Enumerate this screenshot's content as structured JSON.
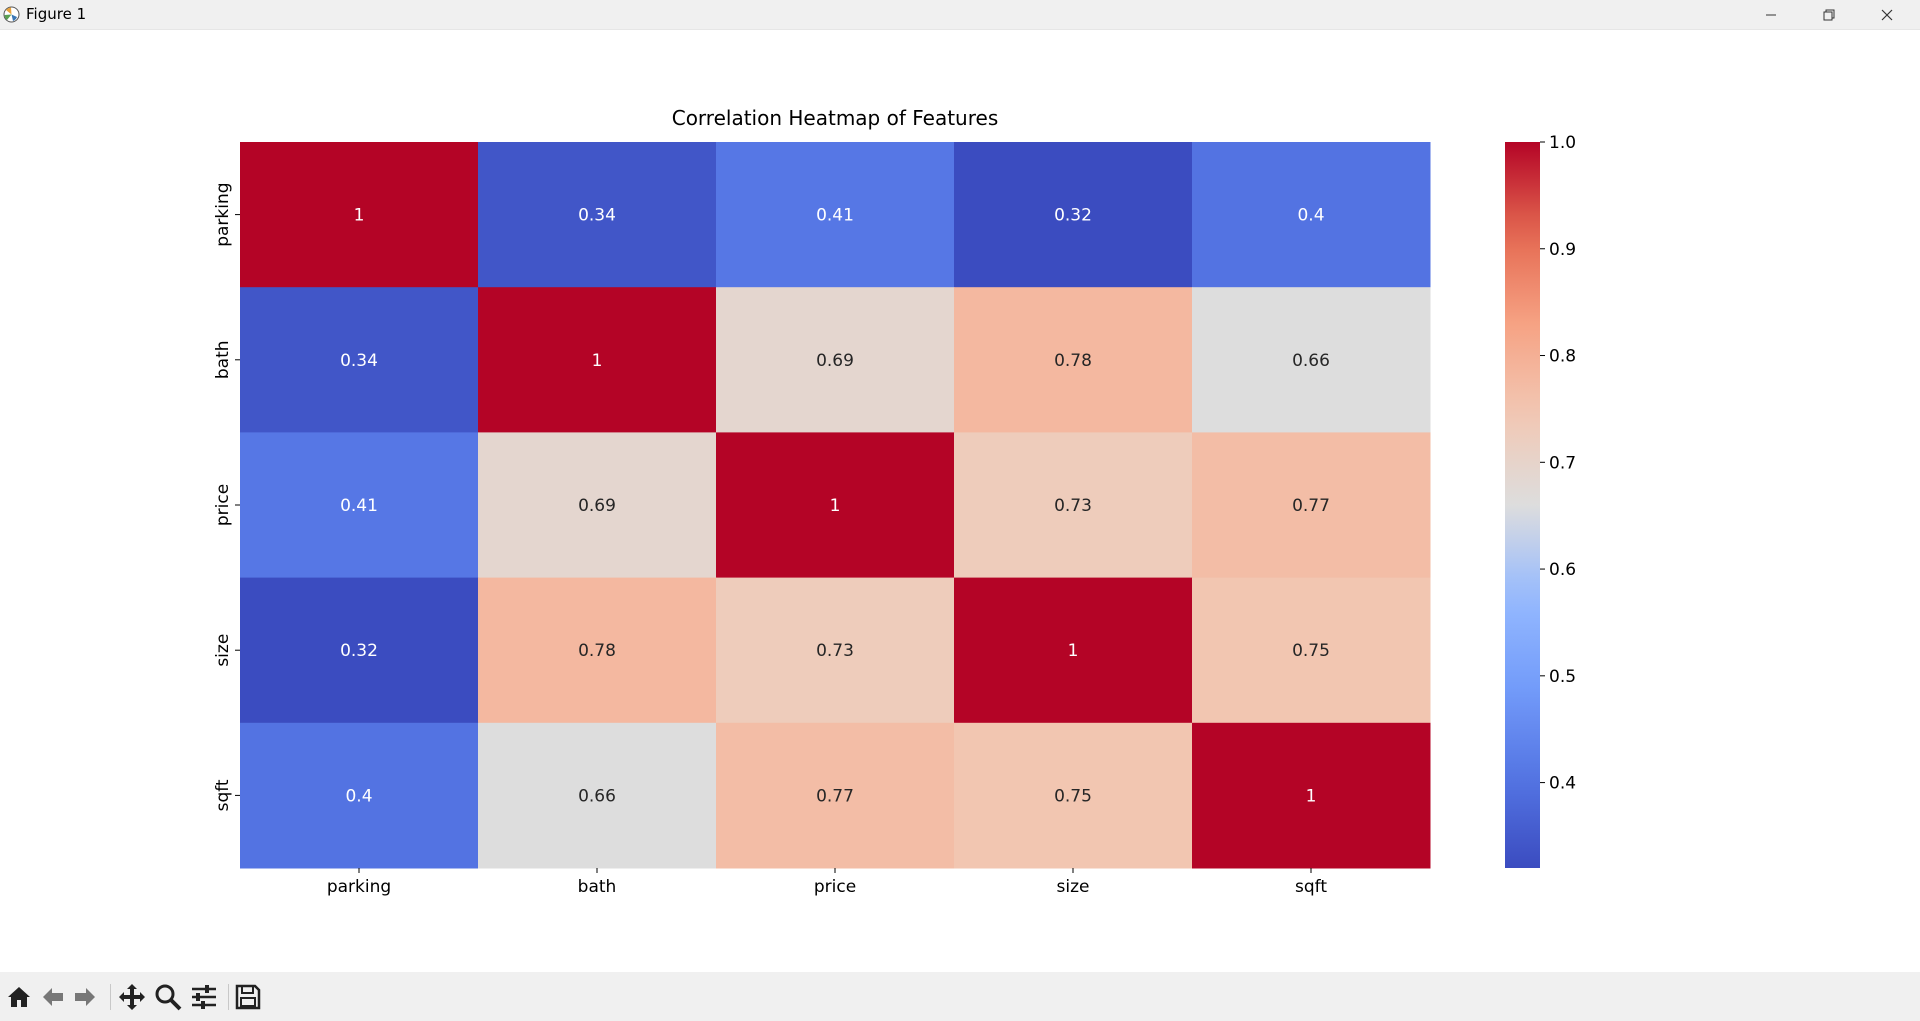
{
  "window": {
    "title": "Figure 1",
    "icons": {
      "app": "matplotlib-icon",
      "minimize": "minimize-icon",
      "maximize": "restore-icon",
      "close": "close-icon"
    }
  },
  "toolbar": {
    "tools": [
      "home-icon",
      "back-arrow-icon",
      "forward-arrow-icon",
      "pan-icon",
      "zoom-icon",
      "configure-subplots-icon",
      "save-icon"
    ]
  },
  "chart_data": {
    "type": "heatmap",
    "title": "Correlation Heatmap of Features",
    "xlabels": [
      "parking",
      "bath",
      "price",
      "size",
      "sqft"
    ],
    "ylabels": [
      "parking",
      "bath",
      "price",
      "size",
      "sqft"
    ],
    "values": [
      [
        1,
        0.34,
        0.41,
        0.32,
        0.4
      ],
      [
        0.34,
        1,
        0.69,
        0.78,
        0.66
      ],
      [
        0.41,
        0.69,
        1,
        0.73,
        0.77
      ],
      [
        0.32,
        0.78,
        0.73,
        1,
        0.75
      ],
      [
        0.4,
        0.66,
        0.77,
        0.75,
        1
      ]
    ],
    "annotations": true,
    "colormap": "coolwarm",
    "colorbar": {
      "range": [
        0.32,
        1.0
      ],
      "ticks": [
        "0.4",
        "0.5",
        "0.6",
        "0.7",
        "0.8",
        "0.9",
        "1.0"
      ]
    },
    "colors": {
      "low": "#3b4cc0",
      "mid": "#dddddd",
      "high": "#b40426"
    }
  }
}
